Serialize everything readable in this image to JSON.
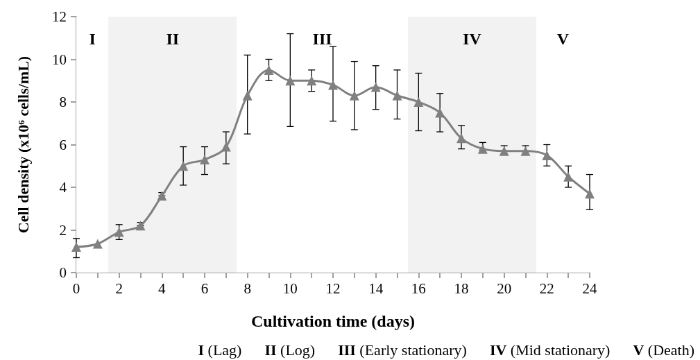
{
  "chart_data": {
    "type": "line",
    "xlabel": "Cultivation time (days)",
    "ylabel": "Cell density (x10⁶ cells/mL)",
    "x": [
      0,
      1,
      2,
      3,
      4,
      5,
      6,
      7,
      8,
      9,
      10,
      11,
      12,
      13,
      14,
      15,
      16,
      17,
      18,
      19,
      20,
      21,
      22,
      23,
      24
    ],
    "series": [
      {
        "color": "#808080",
        "values": [
          1.2,
          1.35,
          1.9,
          2.2,
          3.6,
          5.0,
          5.3,
          5.9,
          8.3,
          9.5,
          9.0,
          9.0,
          8.8,
          8.3,
          8.7,
          8.3,
          8.0,
          7.5,
          6.3,
          5.8,
          5.7,
          5.7,
          5.5,
          4.5,
          3.7
        ],
        "errors": [
          [
            0.7,
            1.6
          ],
          null,
          [
            1.55,
            2.25
          ],
          [
            2.2,
            2.35
          ],
          [
            3.6,
            3.75
          ],
          [
            4.1,
            5.9
          ],
          [
            4.6,
            5.9
          ],
          [
            5.1,
            6.6
          ],
          [
            6.5,
            10.2
          ],
          [
            9.0,
            10.0
          ],
          [
            6.85,
            11.2
          ],
          [
            8.5,
            9.5
          ],
          [
            7.1,
            10.6
          ],
          [
            6.7,
            9.9
          ],
          [
            7.65,
            9.7
          ],
          [
            7.2,
            9.5
          ],
          [
            6.65,
            9.35
          ],
          [
            6.6,
            8.4
          ],
          [
            5.8,
            6.9
          ],
          [
            5.75,
            6.1
          ],
          [
            5.55,
            5.95
          ],
          [
            5.55,
            5.95
          ],
          [
            5.0,
            6.0
          ],
          [
            4.0,
            5.0
          ],
          [
            2.95,
            4.6
          ]
        ]
      }
    ],
    "xlim": [
      0,
      24
    ],
    "xticks": [
      0,
      {
        "value": 1,
        "label": null
      },
      2,
      {
        "value": 3,
        "label": null
      },
      4,
      {
        "value": 5,
        "label": null
      },
      6,
      {
        "value": 7,
        "label": null
      },
      8,
      {
        "value": 9,
        "label": null
      },
      10,
      {
        "value": 11,
        "label": null
      },
      12,
      {
        "value": 13,
        "label": null
      },
      14,
      {
        "value": 15,
        "label": null
      },
      16,
      {
        "value": 17,
        "label": null
      },
      18,
      {
        "value": 19,
        "label": null
      },
      20,
      {
        "value": 21,
        "label": null
      },
      22,
      {
        "value": 23,
        "label": null
      },
      24
    ],
    "ylim": [
      0,
      12
    ],
    "yticks": [
      0,
      2,
      4,
      6,
      8,
      10,
      12
    ],
    "bands": [
      {
        "axis": "x",
        "from": 0,
        "to": 1.5,
        "label": "I",
        "color": "#ffffff"
      },
      {
        "axis": "x",
        "from": 1.5,
        "to": 7.5,
        "label": "II",
        "color": "#f2f2f2"
      },
      {
        "axis": "x",
        "from": 7.5,
        "to": 15.5,
        "label": "III",
        "color": "#ffffff"
      },
      {
        "axis": "x",
        "from": 15.5,
        "to": 21.5,
        "label": "IV",
        "color": "#f2f2f2"
      },
      {
        "axis": "x",
        "from": 21.5,
        "to": 24,
        "label": "V",
        "color": "#ffffff"
      }
    ],
    "annotations": [
      "I (Lag)",
      "II (Log)",
      "III (Early stationary)",
      "IV (Mid stationary)",
      "V (Death)"
    ],
    "marker": "triangle",
    "line_style": "solid",
    "grid": false
  }
}
